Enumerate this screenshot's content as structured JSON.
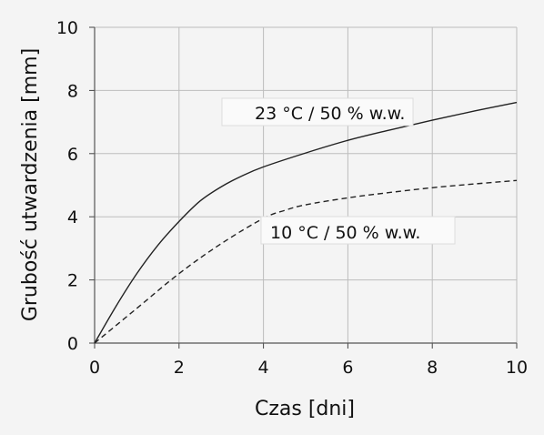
{
  "chart_data": {
    "type": "line",
    "title": "",
    "xlabel": "Czas [dni]",
    "ylabel": "Grubość utwardzenia [mm]",
    "xlim": [
      0,
      10
    ],
    "ylim": [
      0,
      10
    ],
    "xticks": [
      "0",
      "2",
      "4",
      "6",
      "8",
      "10"
    ],
    "yticks": [
      "0",
      "2",
      "4",
      "6",
      "8",
      "10"
    ],
    "grid": true,
    "series": [
      {
        "name": "23 °C / 50 % w.w.",
        "style": "solid",
        "color": "#222222",
        "x": [
          0,
          0.5,
          1,
          1.5,
          2,
          2.5,
          3,
          3.5,
          4,
          5,
          6,
          7,
          8,
          9,
          10
        ],
        "y": [
          0,
          1.15,
          2.2,
          3.1,
          3.85,
          4.5,
          4.95,
          5.3,
          5.58,
          6.02,
          6.42,
          6.75,
          7.06,
          7.35,
          7.62
        ]
      },
      {
        "name": "10 °C / 50 % w.w.",
        "style": "dashed",
        "color": "#222222",
        "x": [
          0,
          1,
          2,
          3,
          4,
          4.5,
          5,
          6,
          7,
          8,
          9,
          10
        ],
        "y": [
          0,
          1.1,
          2.2,
          3.15,
          3.95,
          4.2,
          4.38,
          4.6,
          4.77,
          4.92,
          5.04,
          5.15
        ]
      }
    ],
    "annotations": [
      {
        "text": "23 °C / 50 % w.w.",
        "series": 0
      },
      {
        "text": "10 °C / 50 % w.w.",
        "series": 1
      }
    ]
  }
}
